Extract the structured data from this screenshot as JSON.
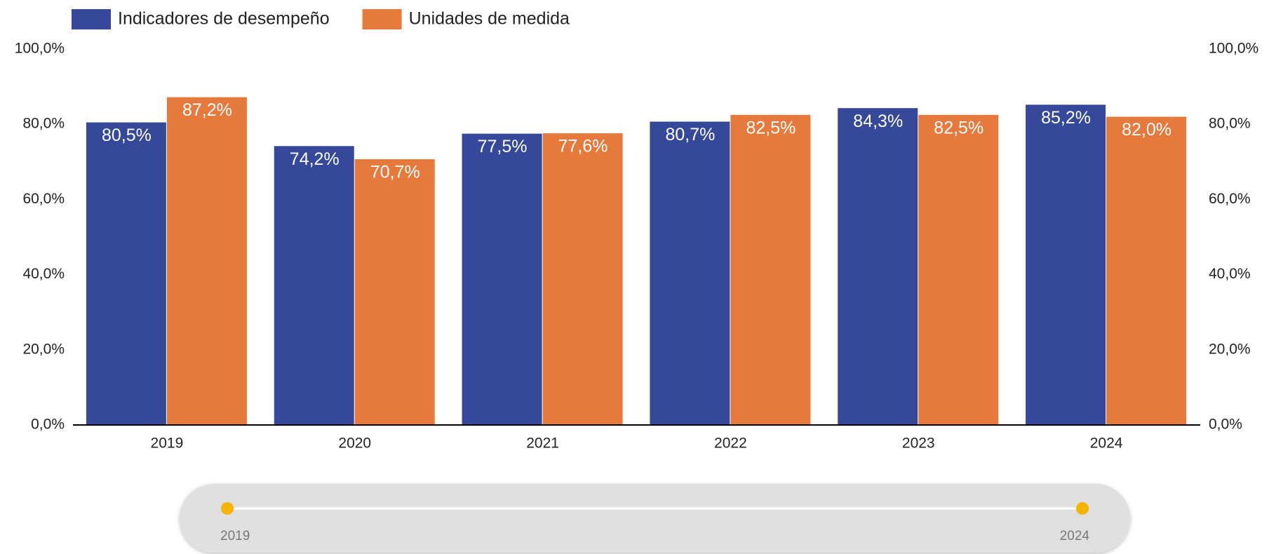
{
  "chart_data": {
    "type": "bar",
    "categories": [
      "2019",
      "2020",
      "2021",
      "2022",
      "2023",
      "2024"
    ],
    "series": [
      {
        "name": "Indicadores de desempeño",
        "color": "#36489a",
        "values": [
          80.5,
          74.2,
          77.5,
          80.7,
          84.3,
          85.2
        ],
        "value_labels": [
          "80,5%",
          "74,2%",
          "77,5%",
          "80,7%",
          "84,3%",
          "85,2%"
        ]
      },
      {
        "name": "Unidades de medida",
        "color": "#e57a3c",
        "values": [
          87.2,
          70.7,
          77.6,
          82.5,
          82.5,
          82.0
        ],
        "value_labels": [
          "87,2%",
          "70,7%",
          "77,6%",
          "82,5%",
          "82,5%",
          "82,0%"
        ]
      }
    ],
    "ylim": [
      0,
      100
    ],
    "yticks": [
      {
        "value": 0,
        "label": "0,0%"
      },
      {
        "value": 20,
        "label": "20,0%"
      },
      {
        "value": 40,
        "label": "40,0%"
      },
      {
        "value": 60,
        "label": "60,0%"
      },
      {
        "value": 80,
        "label": "80,0%"
      },
      {
        "value": 100,
        "label": "100,0%"
      }
    ],
    "y2lim": [
      0,
      100
    ],
    "y2ticks": [
      {
        "value": 0,
        "label": "0,0%"
      },
      {
        "value": 20,
        "label": "20,0%"
      },
      {
        "value": 40,
        "label": "40,0%"
      },
      {
        "value": 60,
        "label": "60,0%"
      },
      {
        "value": 80,
        "label": "80,0%"
      },
      {
        "value": 100,
        "label": "100,0%"
      }
    ],
    "legend": "top-left",
    "grid": false
  },
  "slider": {
    "start_label": "2019",
    "end_label": "2024"
  }
}
